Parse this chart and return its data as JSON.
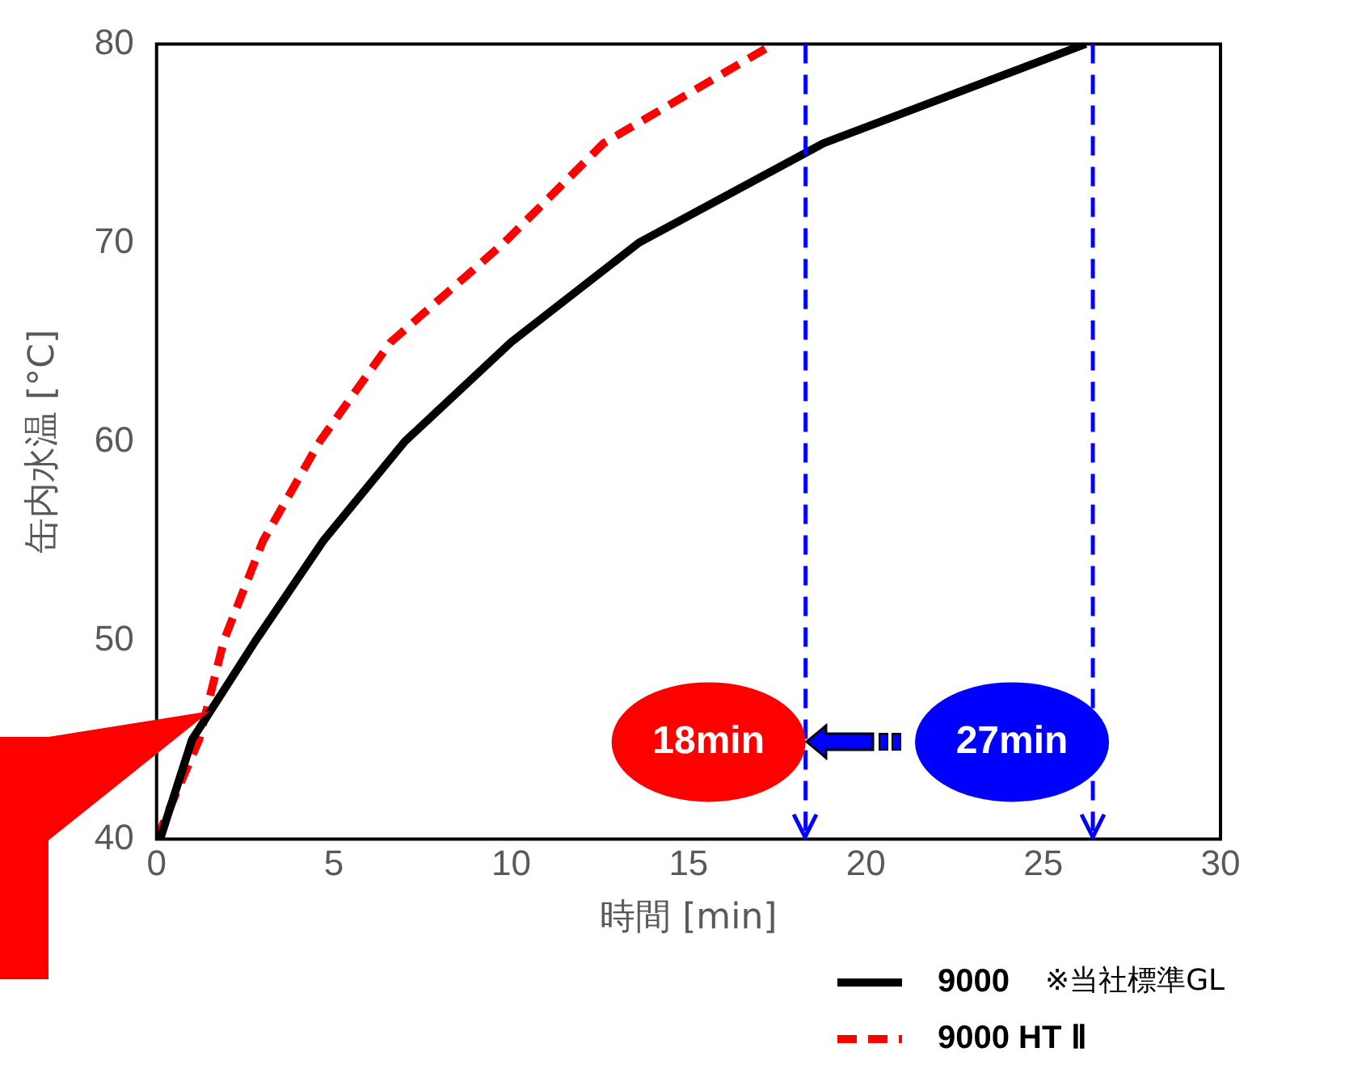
{
  "chart_data": {
    "type": "line",
    "xlabel": "時間 [min]",
    "ylabel": "缶内水温 [°C]",
    "xlim": [
      0,
      30
    ],
    "xticks": [
      0,
      5,
      10,
      15,
      20,
      25,
      30
    ],
    "ylim": [
      40,
      80
    ],
    "yticks": [
      40,
      50,
      60,
      70,
      80
    ],
    "grid": false,
    "legend": "bottom right",
    "marker": "none",
    "series": [
      {
        "name": "9000",
        "color": "#000000",
        "line_style": "solid",
        "x": [
          0.1,
          1.0,
          2.8,
          4.7,
          7.0,
          10.0,
          13.6,
          18.8,
          26.2
        ],
        "values": [
          40,
          45,
          50,
          55,
          60,
          65,
          70,
          75,
          80
        ]
      },
      {
        "name": "9000 HT Ⅱ",
        "color": "#ff0000",
        "line_style": "dashed",
        "x": [
          0,
          1.2,
          1.9,
          3.0,
          4.6,
          6.6,
          9.8,
          12.6,
          17.4
        ],
        "values": [
          40,
          45,
          50,
          55,
          60,
          65,
          70,
          75,
          80
        ]
      }
    ],
    "ref_lines": [
      {
        "axis": "x",
        "value": 18.3,
        "label": "18min",
        "color": "#0000ff",
        "line_style": "dashed"
      },
      {
        "axis": "x",
        "value": 26.4,
        "label": "27min",
        "color": "#0000ff",
        "line_style": "dashed"
      }
    ],
    "annotations": [
      "※当社標準GL"
    ]
  }
}
